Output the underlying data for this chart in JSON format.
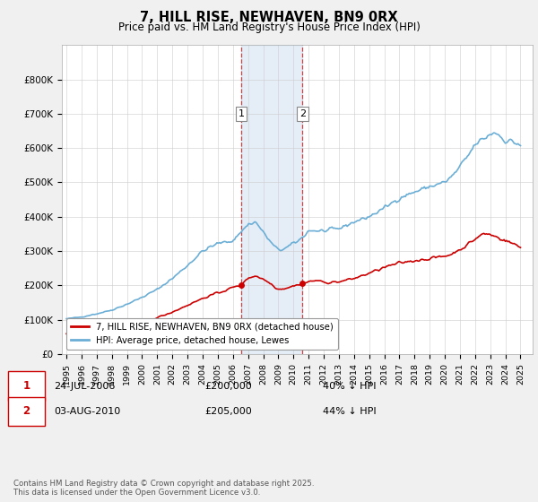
{
  "title": "7, HILL RISE, NEWHAVEN, BN9 0RX",
  "subtitle": "Price paid vs. HM Land Registry's House Price Index (HPI)",
  "ylim": [
    0,
    900000
  ],
  "yticks": [
    0,
    100000,
    200000,
    300000,
    400000,
    500000,
    600000,
    700000,
    800000
  ],
  "ytick_labels": [
    "£0",
    "£100K",
    "£200K",
    "£300K",
    "£400K",
    "£500K",
    "£600K",
    "£700K",
    "£800K"
  ],
  "hpi_color": "#6baed6",
  "price_color": "#cc0000",
  "sale1_date": 2006.56,
  "sale1_price": 200000,
  "sale1_label": "1",
  "sale2_date": 2010.59,
  "sale2_price": 205000,
  "sale2_label": "2",
  "shade_color": "#c6dbef",
  "vline_color": "#cc4444",
  "legend_label_price": "7, HILL RISE, NEWHAVEN, BN9 0RX (detached house)",
  "legend_label_hpi": "HPI: Average price, detached house, Lewes",
  "footnote": "Contains HM Land Registry data © Crown copyright and database right 2025.\nThis data is licensed under the Open Government Licence v3.0.",
  "table_row1": [
    "1",
    "24-JUL-2006",
    "£200,000",
    "40% ↓ HPI"
  ],
  "table_row2": [
    "2",
    "03-AUG-2010",
    "£205,000",
    "44% ↓ HPI"
  ],
  "background_color": "#f0f0f0",
  "plot_bg_color": "#ffffff",
  "xlim_left": 1994.7,
  "xlim_right": 2025.8
}
